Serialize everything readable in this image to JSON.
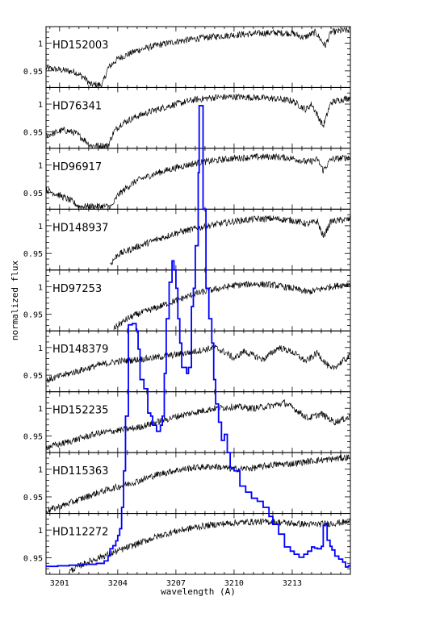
{
  "chart_data": {
    "type": "line",
    "xlabel": "wavelength (A)",
    "ylabel": "normalized flux",
    "xlim": [
      3200.3,
      3216.0
    ],
    "x_ticks": [
      3201,
      3204,
      3207,
      3210,
      3213
    ],
    "y_tick_values": [
      1,
      0.95
    ],
    "y_tick_labels": [
      "1",
      "0.95"
    ],
    "panel_ylim": [
      0.92,
      1.03
    ],
    "line_color": "#000000",
    "overlay_color": "#0000ff",
    "panels": [
      {
        "name": "HD152003",
        "points": [
          [
            3200.3,
            0.955
          ],
          [
            3201.0,
            0.952
          ],
          [
            3201.8,
            0.948
          ],
          [
            3202.3,
            0.937
          ],
          [
            3202.6,
            0.925
          ],
          [
            3203.2,
            0.925
          ],
          [
            3203.5,
            0.955
          ],
          [
            3204.0,
            0.972
          ],
          [
            3205.0,
            0.987
          ],
          [
            3206.0,
            0.996
          ],
          [
            3207.0,
            1.003
          ],
          [
            3208.0,
            1.008
          ],
          [
            3209.0,
            1.012
          ],
          [
            3210.0,
            1.015
          ],
          [
            3211.0,
            1.017
          ],
          [
            3212.0,
            1.019
          ],
          [
            3213.0,
            1.018
          ],
          [
            3213.6,
            1.01
          ],
          [
            3214.2,
            1.02
          ],
          [
            3214.7,
            0.995
          ],
          [
            3215.0,
            1.02
          ],
          [
            3216.0,
            1.024
          ]
        ]
      },
      {
        "name": "HD76341",
        "points": [
          [
            3200.3,
            0.943
          ],
          [
            3201.2,
            0.953
          ],
          [
            3201.8,
            0.948
          ],
          [
            3202.3,
            0.935
          ],
          [
            3202.6,
            0.925
          ],
          [
            3203.5,
            0.925
          ],
          [
            3203.8,
            0.95
          ],
          [
            3204.2,
            0.965
          ],
          [
            3205.0,
            0.978
          ],
          [
            3206.0,
            0.99
          ],
          [
            3207.0,
            1.0
          ],
          [
            3208.0,
            1.008
          ],
          [
            3209.0,
            1.012
          ],
          [
            3210.0,
            1.013
          ],
          [
            3211.0,
            1.012
          ],
          [
            3212.0,
            1.01
          ],
          [
            3213.0,
            1.006
          ],
          [
            3213.7,
            0.99
          ],
          [
            3214.0,
            1.0
          ],
          [
            3214.6,
            0.96
          ],
          [
            3215.0,
            1.003
          ],
          [
            3216.0,
            1.012
          ]
        ]
      },
      {
        "name": "HD96917",
        "points": [
          [
            3200.3,
            0.955
          ],
          [
            3201.0,
            0.945
          ],
          [
            3201.6,
            0.935
          ],
          [
            3202.0,
            0.925
          ],
          [
            3203.7,
            0.925
          ],
          [
            3204.0,
            0.945
          ],
          [
            3204.5,
            0.96
          ],
          [
            3205.0,
            0.972
          ],
          [
            3206.0,
            0.985
          ],
          [
            3207.0,
            0.995
          ],
          [
            3208.0,
            1.003
          ],
          [
            3209.0,
            1.008
          ],
          [
            3210.0,
            1.012
          ],
          [
            3211.0,
            1.014
          ],
          [
            3212.0,
            1.015
          ],
          [
            3213.0,
            1.012
          ],
          [
            3213.8,
            1.005
          ],
          [
            3214.3,
            1.01
          ],
          [
            3214.6,
            0.99
          ],
          [
            3215.0,
            1.01
          ],
          [
            3216.0,
            1.014
          ]
        ]
      },
      {
        "name": "HD148937",
        "points": [
          [
            3203.6,
            0.93
          ],
          [
            3204.0,
            0.948
          ],
          [
            3205.0,
            0.962
          ],
          [
            3206.0,
            0.975
          ],
          [
            3207.0,
            0.987
          ],
          [
            3208.0,
            0.995
          ],
          [
            3209.0,
            1.002
          ],
          [
            3210.0,
            1.008
          ],
          [
            3211.0,
            1.012
          ],
          [
            3212.0,
            1.013
          ],
          [
            3213.0,
            1.01
          ],
          [
            3213.8,
            1.003
          ],
          [
            3214.3,
            1.008
          ],
          [
            3214.6,
            0.98
          ],
          [
            3215.0,
            1.008
          ],
          [
            3216.0,
            1.012
          ]
        ]
      },
      {
        "name": "HD97253",
        "points": [
          [
            3203.8,
            0.925
          ],
          [
            3204.5,
            0.942
          ],
          [
            3205.0,
            0.95
          ],
          [
            3206.0,
            0.962
          ],
          [
            3207.0,
            0.975
          ],
          [
            3208.0,
            0.987
          ],
          [
            3209.0,
            0.995
          ],
          [
            3210.0,
            1.002
          ],
          [
            3211.0,
            1.005
          ],
          [
            3212.0,
            1.003
          ],
          [
            3213.0,
            0.997
          ],
          [
            3213.8,
            0.99
          ],
          [
            3214.4,
            0.995
          ],
          [
            3215.0,
            1.0
          ],
          [
            3216.0,
            1.005
          ]
        ]
      },
      {
        "name": "HD148379",
        "points": [
          [
            3200.3,
            0.94
          ],
          [
            3201.0,
            0.948
          ],
          [
            3202.0,
            0.958
          ],
          [
            3203.0,
            0.968
          ],
          [
            3204.0,
            0.975
          ],
          [
            3205.0,
            0.978
          ],
          [
            3206.0,
            0.982
          ],
          [
            3207.0,
            0.987
          ],
          [
            3208.0,
            0.993
          ],
          [
            3209.0,
            1.0
          ],
          [
            3209.6,
            0.99
          ],
          [
            3210.0,
            0.98
          ],
          [
            3210.5,
            0.993
          ],
          [
            3211.5,
            0.978
          ],
          [
            3212.3,
            1.0
          ],
          [
            3213.0,
            0.992
          ],
          [
            3213.7,
            0.975
          ],
          [
            3214.3,
            0.99
          ],
          [
            3215.0,
            0.96
          ],
          [
            3216.0,
            0.985
          ]
        ]
      },
      {
        "name": "HD152235",
        "points": [
          [
            3200.3,
            0.93
          ],
          [
            3201.0,
            0.935
          ],
          [
            3202.0,
            0.945
          ],
          [
            3203.0,
            0.955
          ],
          [
            3204.0,
            0.96
          ],
          [
            3205.0,
            0.965
          ],
          [
            3206.0,
            0.975
          ],
          [
            3207.0,
            0.985
          ],
          [
            3208.0,
            0.993
          ],
          [
            3209.0,
            1.0
          ],
          [
            3210.0,
            1.003
          ],
          [
            3211.0,
            1.0
          ],
          [
            3212.0,
            1.005
          ],
          [
            3212.6,
            1.01
          ],
          [
            3213.3,
            0.995
          ],
          [
            3213.8,
            0.982
          ],
          [
            3214.5,
            0.99
          ],
          [
            3215.2,
            0.975
          ],
          [
            3216.0,
            0.985
          ]
        ]
      },
      {
        "name": "HD115363",
        "points": [
          [
            3200.3,
            0.925
          ],
          [
            3201.0,
            0.932
          ],
          [
            3202.0,
            0.945
          ],
          [
            3203.0,
            0.958
          ],
          [
            3204.0,
            0.968
          ],
          [
            3205.0,
            0.978
          ],
          [
            3206.0,
            0.99
          ],
          [
            3207.0,
            0.998
          ],
          [
            3208.0,
            1.003
          ],
          [
            3209.0,
            1.005
          ],
          [
            3210.0,
            1.0
          ],
          [
            3211.0,
            1.002
          ],
          [
            3212.0,
            1.008
          ],
          [
            3213.0,
            1.01
          ],
          [
            3214.0,
            1.015
          ],
          [
            3215.0,
            1.018
          ],
          [
            3216.0,
            1.022
          ]
        ]
      },
      {
        "name": "HD112272",
        "points": [
          [
            3201.5,
            0.925
          ],
          [
            3202.0,
            0.935
          ],
          [
            3203.0,
            0.95
          ],
          [
            3204.0,
            0.962
          ],
          [
            3205.0,
            0.975
          ],
          [
            3206.0,
            0.988
          ],
          [
            3207.0,
            0.998
          ],
          [
            3208.0,
            1.005
          ],
          [
            3209.0,
            1.01
          ],
          [
            3210.0,
            1.013
          ],
          [
            3211.0,
            1.015
          ],
          [
            3212.0,
            1.015
          ],
          [
            3213.0,
            1.012
          ],
          [
            3214.0,
            1.01
          ],
          [
            3215.0,
            1.012
          ],
          [
            3216.0,
            1.015
          ]
        ]
      }
    ],
    "overlay_points": [
      [
        3200.3,
        0.13
      ],
      [
        3200.9,
        0.14
      ],
      [
        3201.5,
        0.15
      ],
      [
        3202.2,
        0.165
      ],
      [
        3202.9,
        0.18
      ],
      [
        3203.3,
        0.22
      ],
      [
        3203.5,
        0.3
      ],
      [
        3203.6,
        0.42
      ],
      [
        3203.75,
        0.47
      ],
      [
        3203.9,
        0.55
      ],
      [
        3204.0,
        0.64
      ],
      [
        3204.1,
        0.75
      ],
      [
        3204.2,
        1.1
      ],
      [
        3204.3,
        1.7
      ],
      [
        3204.4,
        2.6
      ],
      [
        3204.55,
        4.1
      ],
      [
        3204.75,
        4.12
      ],
      [
        3204.95,
        4.0
      ],
      [
        3205.05,
        3.7
      ],
      [
        3205.15,
        3.2
      ],
      [
        3205.35,
        3.05
      ],
      [
        3205.55,
        2.65
      ],
      [
        3205.7,
        2.6
      ],
      [
        3205.8,
        2.45
      ],
      [
        3206.0,
        2.35
      ],
      [
        3206.2,
        2.45
      ],
      [
        3206.3,
        2.6
      ],
      [
        3206.4,
        3.3
      ],
      [
        3206.5,
        4.2
      ],
      [
        3206.65,
        4.8
      ],
      [
        3206.8,
        5.15
      ],
      [
        3206.9,
        5.0
      ],
      [
        3207.0,
        4.7
      ],
      [
        3207.1,
        4.2
      ],
      [
        3207.2,
        3.8
      ],
      [
        3207.3,
        3.4
      ],
      [
        3207.45,
        3.4
      ],
      [
        3207.55,
        3.3
      ],
      [
        3207.65,
        3.4
      ],
      [
        3207.8,
        4.4
      ],
      [
        3207.9,
        4.7
      ],
      [
        3208.0,
        5.4
      ],
      [
        3208.15,
        6.6
      ],
      [
        3208.2,
        7.7
      ],
      [
        3208.3,
        7.7
      ],
      [
        3208.4,
        6.0
      ],
      [
        3208.55,
        4.7
      ],
      [
        3208.7,
        4.2
      ],
      [
        3208.85,
        3.8
      ],
      [
        3208.95,
        3.2
      ],
      [
        3209.05,
        2.8
      ],
      [
        3209.2,
        2.5
      ],
      [
        3209.35,
        2.2
      ],
      [
        3209.5,
        2.3
      ],
      [
        3209.65,
        2.0
      ],
      [
        3209.8,
        1.75
      ],
      [
        3210.0,
        1.7
      ],
      [
        3210.3,
        1.45
      ],
      [
        3210.6,
        1.35
      ],
      [
        3210.9,
        1.25
      ],
      [
        3211.2,
        1.2
      ],
      [
        3211.5,
        1.1
      ],
      [
        3211.8,
        0.95
      ],
      [
        3212.0,
        0.82
      ],
      [
        3212.3,
        0.66
      ],
      [
        3212.6,
        0.45
      ],
      [
        3212.9,
        0.38
      ],
      [
        3213.1,
        0.33
      ],
      [
        3213.35,
        0.28
      ],
      [
        3213.6,
        0.33
      ],
      [
        3213.8,
        0.38
      ],
      [
        3214.0,
        0.45
      ],
      [
        3214.15,
        0.43
      ],
      [
        3214.3,
        0.42
      ],
      [
        3214.5,
        0.46
      ],
      [
        3214.6,
        0.8
      ],
      [
        3214.7,
        0.83
      ],
      [
        3214.8,
        0.56
      ],
      [
        3214.95,
        0.46
      ],
      [
        3215.05,
        0.4
      ],
      [
        3215.2,
        0.3
      ],
      [
        3215.4,
        0.25
      ],
      [
        3215.6,
        0.2
      ],
      [
        3215.75,
        0.12
      ],
      [
        3215.9,
        0.14
      ],
      [
        3216.0,
        0.16
      ]
    ]
  }
}
